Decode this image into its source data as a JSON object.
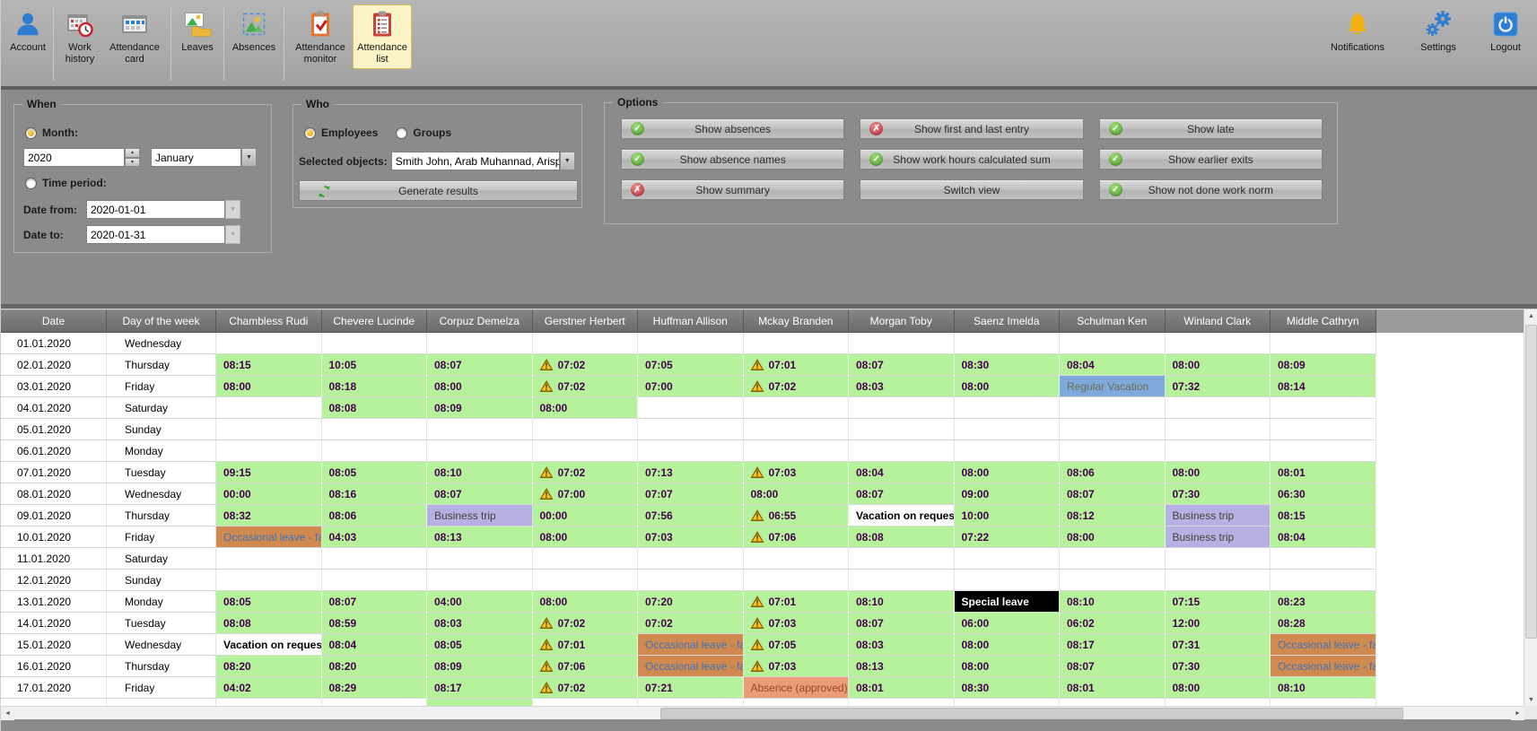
{
  "toolbar": {
    "account": "Account",
    "work_history": "Work history",
    "attendance_card": "Attendance card",
    "leaves": "Leaves",
    "absences": "Absences",
    "attendance_monitor": "Attendance monitor",
    "attendance_list": "Attendance list",
    "notifications": "Notifications",
    "settings": "Settings",
    "logout": "Logout"
  },
  "filters": {
    "when": {
      "title": "When",
      "month_radio": "Month:",
      "year_value": "2020",
      "month_value": "January",
      "period_radio": "Time period:",
      "date_from_label": "Date from:",
      "date_from_value": "2020-01-01",
      "date_to_label": "Date to:",
      "date_to_value": "2020-01-31"
    },
    "who": {
      "title": "Who",
      "employees_radio": "Employees",
      "groups_radio": "Groups",
      "selected_objects_label": "Selected objects:",
      "selected_objects_value": "Smith John, Arab Muhannad, Arispe An",
      "generate_button": "Generate results"
    },
    "options": {
      "title": "Options",
      "buttons": [
        {
          "label": "Show absences",
          "state": "on"
        },
        {
          "label": "Show first and last entry",
          "state": "off"
        },
        {
          "label": "Show late",
          "state": "on"
        },
        {
          "label": "Show absence names",
          "state": "on"
        },
        {
          "label": "Show work hours calculated sum",
          "state": "on"
        },
        {
          "label": "Show earlier exits",
          "state": "on"
        },
        {
          "label": "Show summary",
          "state": "off"
        },
        {
          "label": "Switch view",
          "state": "none"
        },
        {
          "label": "Show not done work norm",
          "state": "on"
        }
      ]
    }
  },
  "table": {
    "columns": [
      "Date",
      "Day of the week",
      "Chambless Rudi",
      "Chevere Lucinde",
      "Corpuz Demelza",
      "Gerstner Herbert",
      "Huffman Allison",
      "Mckay Branden",
      "Morgan Toby",
      "Saenz Imelda",
      "Schulman Ken",
      "Winland Clark",
      "Middle Cathryn"
    ],
    "rows": [
      {
        "date": "01.01.2020",
        "day": "Wednesday",
        "cells": [
          [
            "e",
            ""
          ],
          [
            "e",
            ""
          ],
          [
            "e",
            ""
          ],
          [
            "e",
            ""
          ],
          [
            "e",
            ""
          ],
          [
            "e",
            ""
          ],
          [
            "e",
            ""
          ],
          [
            "e",
            ""
          ],
          [
            "e",
            ""
          ],
          [
            "e",
            ""
          ],
          [
            "e",
            ""
          ]
        ]
      },
      {
        "date": "02.01.2020",
        "day": "Thursday",
        "cells": [
          [
            "t",
            "08:15"
          ],
          [
            "t",
            "10:05"
          ],
          [
            "t",
            "08:07"
          ],
          [
            "w",
            "07:02"
          ],
          [
            "t",
            "07:05"
          ],
          [
            "w",
            "07:01"
          ],
          [
            "t",
            "08:07"
          ],
          [
            "t",
            "08:30"
          ],
          [
            "t",
            "08:04"
          ],
          [
            "t",
            "08:00"
          ],
          [
            "t",
            "08:09"
          ]
        ]
      },
      {
        "date": "03.01.2020",
        "day": "Friday",
        "cells": [
          [
            "t",
            "08:00"
          ],
          [
            "t",
            "08:18"
          ],
          [
            "t",
            "08:00"
          ],
          [
            "w",
            "07:02"
          ],
          [
            "t",
            "07:00"
          ],
          [
            "w",
            "07:02"
          ],
          [
            "t",
            "08:03"
          ],
          [
            "t",
            "08:00"
          ],
          [
            "rv",
            "Regular Vacation"
          ],
          [
            "t",
            "07:32"
          ],
          [
            "t",
            "08:14"
          ]
        ]
      },
      {
        "date": "04.01.2020",
        "day": "Saturday",
        "cells": [
          [
            "e",
            ""
          ],
          [
            "t",
            "08:08"
          ],
          [
            "t",
            "08:09"
          ],
          [
            "t",
            "08:00"
          ],
          [
            "e",
            ""
          ],
          [
            "e",
            ""
          ],
          [
            "e",
            ""
          ],
          [
            "e",
            ""
          ],
          [
            "e",
            ""
          ],
          [
            "e",
            ""
          ],
          [
            "e",
            ""
          ]
        ]
      },
      {
        "date": "05.01.2020",
        "day": "Sunday",
        "cells": [
          [
            "e",
            ""
          ],
          [
            "e",
            ""
          ],
          [
            "e",
            ""
          ],
          [
            "e",
            ""
          ],
          [
            "e",
            ""
          ],
          [
            "e",
            ""
          ],
          [
            "e",
            ""
          ],
          [
            "e",
            ""
          ],
          [
            "e",
            ""
          ],
          [
            "e",
            ""
          ],
          [
            "e",
            ""
          ]
        ]
      },
      {
        "date": "06.01.2020",
        "day": "Monday",
        "cells": [
          [
            "e",
            ""
          ],
          [
            "e",
            ""
          ],
          [
            "e",
            ""
          ],
          [
            "e",
            ""
          ],
          [
            "e",
            ""
          ],
          [
            "e",
            ""
          ],
          [
            "e",
            ""
          ],
          [
            "e",
            ""
          ],
          [
            "e",
            ""
          ],
          [
            "e",
            ""
          ],
          [
            "e",
            ""
          ]
        ]
      },
      {
        "date": "07.01.2020",
        "day": "Tuesday",
        "cells": [
          [
            "t",
            "09:15"
          ],
          [
            "t",
            "08:05"
          ],
          [
            "t",
            "08:10"
          ],
          [
            "w",
            "07:02"
          ],
          [
            "t",
            "07:13"
          ],
          [
            "w",
            "07:03"
          ],
          [
            "t",
            "08:04"
          ],
          [
            "t",
            "08:00"
          ],
          [
            "t",
            "08:06"
          ],
          [
            "t",
            "08:00"
          ],
          [
            "t",
            "08:01"
          ]
        ]
      },
      {
        "date": "08.01.2020",
        "day": "Wednesday",
        "cells": [
          [
            "t",
            "00:00"
          ],
          [
            "t",
            "08:16"
          ],
          [
            "t",
            "08:07"
          ],
          [
            "w",
            "07:00"
          ],
          [
            "t",
            "07:07"
          ],
          [
            "t",
            "08:00"
          ],
          [
            "t",
            "08:07"
          ],
          [
            "t",
            "09:00"
          ],
          [
            "t",
            "08:07"
          ],
          [
            "t",
            "07:30"
          ],
          [
            "t",
            "06:30"
          ]
        ]
      },
      {
        "date": "09.01.2020",
        "day": "Thursday",
        "cells": [
          [
            "t",
            "08:32"
          ],
          [
            "t",
            "08:06"
          ],
          [
            "bt",
            "Business trip"
          ],
          [
            "t",
            "00:00"
          ],
          [
            "t",
            "07:56"
          ],
          [
            "w",
            "06:55"
          ],
          [
            "vr",
            "Vacation on request"
          ],
          [
            "t",
            "10:00"
          ],
          [
            "t",
            "08:12"
          ],
          [
            "bt",
            "Business trip"
          ],
          [
            "t",
            "08:15"
          ]
        ]
      },
      {
        "date": "10.01.2020",
        "day": "Friday",
        "cells": [
          [
            "ol",
            "Occasional leave - fam"
          ],
          [
            "t",
            "04:03"
          ],
          [
            "t",
            "08:13"
          ],
          [
            "t",
            "08:00"
          ],
          [
            "t",
            "07:03"
          ],
          [
            "w",
            "07:06"
          ],
          [
            "t",
            "08:08"
          ],
          [
            "t",
            "07:22"
          ],
          [
            "t",
            "08:00"
          ],
          [
            "bt",
            "Business trip"
          ],
          [
            "t",
            "08:04"
          ]
        ]
      },
      {
        "date": "11.01.2020",
        "day": "Saturday",
        "cells": [
          [
            "e",
            ""
          ],
          [
            "e",
            ""
          ],
          [
            "e",
            ""
          ],
          [
            "e",
            ""
          ],
          [
            "e",
            ""
          ],
          [
            "e",
            ""
          ],
          [
            "e",
            ""
          ],
          [
            "e",
            ""
          ],
          [
            "e",
            ""
          ],
          [
            "e",
            ""
          ],
          [
            "e",
            ""
          ]
        ]
      },
      {
        "date": "12.01.2020",
        "day": "Sunday",
        "cells": [
          [
            "e",
            ""
          ],
          [
            "e",
            ""
          ],
          [
            "e",
            ""
          ],
          [
            "e",
            ""
          ],
          [
            "e",
            ""
          ],
          [
            "e",
            ""
          ],
          [
            "e",
            ""
          ],
          [
            "e",
            ""
          ],
          [
            "e",
            ""
          ],
          [
            "e",
            ""
          ],
          [
            "e",
            ""
          ]
        ]
      },
      {
        "date": "13.01.2020",
        "day": "Monday",
        "cells": [
          [
            "t",
            "08:05"
          ],
          [
            "t",
            "08:07"
          ],
          [
            "t",
            "04:00"
          ],
          [
            "t",
            "08:00"
          ],
          [
            "t",
            "07:20"
          ],
          [
            "w",
            "07:01"
          ],
          [
            "t",
            "08:10"
          ],
          [
            "sl",
            "Special leave"
          ],
          [
            "t",
            "08:10"
          ],
          [
            "t",
            "07:15"
          ],
          [
            "t",
            "08:23"
          ]
        ]
      },
      {
        "date": "14.01.2020",
        "day": "Tuesday",
        "cells": [
          [
            "t",
            "08:08"
          ],
          [
            "t",
            "08:59"
          ],
          [
            "t",
            "08:03"
          ],
          [
            "w",
            "07:02"
          ],
          [
            "t",
            "07:02"
          ],
          [
            "w",
            "07:03"
          ],
          [
            "t",
            "08:07"
          ],
          [
            "t",
            "06:00"
          ],
          [
            "t",
            "06:02"
          ],
          [
            "t",
            "12:00"
          ],
          [
            "t",
            "08:28"
          ]
        ]
      },
      {
        "date": "15.01.2020",
        "day": "Wednesday",
        "cells": [
          [
            "vr",
            "Vacation on request"
          ],
          [
            "t",
            "08:04"
          ],
          [
            "t",
            "08:05"
          ],
          [
            "w",
            "07:01"
          ],
          [
            "ol",
            "Occasional leave - fam"
          ],
          [
            "w",
            "07:05"
          ],
          [
            "t",
            "08:03"
          ],
          [
            "t",
            "08:00"
          ],
          [
            "t",
            "08:17"
          ],
          [
            "t",
            "07:31"
          ],
          [
            "ol",
            "Occasional leave - fam"
          ]
        ]
      },
      {
        "date": "16.01.2020",
        "day": "Thursday",
        "cells": [
          [
            "t",
            "08:20"
          ],
          [
            "t",
            "08:20"
          ],
          [
            "t",
            "08:09"
          ],
          [
            "w",
            "07:06"
          ],
          [
            "ol",
            "Occasional leave - fam"
          ],
          [
            "w",
            "07:03"
          ],
          [
            "t",
            "08:13"
          ],
          [
            "t",
            "08:00"
          ],
          [
            "t",
            "08:07"
          ],
          [
            "t",
            "07:30"
          ],
          [
            "ol",
            "Occasional leave - fam"
          ]
        ]
      },
      {
        "date": "17.01.2020",
        "day": "Friday",
        "cells": [
          [
            "t",
            "04:02"
          ],
          [
            "t",
            "08:29"
          ],
          [
            "t",
            "08:17"
          ],
          [
            "w",
            "07:02"
          ],
          [
            "t",
            "07:21"
          ],
          [
            "aa",
            "Absence (approved)"
          ],
          [
            "t",
            "08:01"
          ],
          [
            "t",
            "08:30"
          ],
          [
            "t",
            "08:01"
          ],
          [
            "t",
            "08:00"
          ],
          [
            "t",
            "08:10"
          ]
        ]
      },
      {
        "date": "",
        "day": "",
        "partial": true,
        "cells": [
          [
            "e",
            ""
          ],
          [
            "e",
            ""
          ],
          [
            "g",
            ""
          ],
          [
            "e",
            ""
          ],
          [
            "e",
            ""
          ],
          [
            "e",
            ""
          ],
          [
            "e",
            ""
          ],
          [
            "e",
            ""
          ],
          [
            "e",
            ""
          ],
          [
            "e",
            ""
          ],
          [
            "e",
            ""
          ]
        ]
      }
    ]
  },
  "colors": {
    "green": "#b6f19b",
    "time_text": "#44004c",
    "blue": "#7ea9dc",
    "lavender": "#b6b1e2",
    "orange": "#d0894e",
    "orange_text": "#3f74b8",
    "salmon": "#ea9c78",
    "salmon_text": "#9e4430",
    "accent_blue": "#2e7dd1",
    "warning_yellow": "#f7c51e",
    "selected_tab_bg": "#fdf3c9"
  }
}
